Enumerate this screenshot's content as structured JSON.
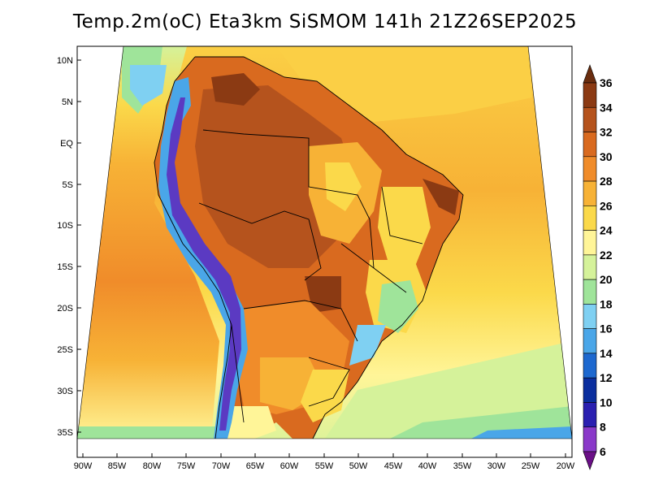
{
  "title": "Temp.2m(oC) Eta3km SiSMOM 141h 21Z26SEP2025",
  "axes": {
    "lat_labels": [
      "10N",
      "5N",
      "EQ",
      "5S",
      "10S",
      "15S",
      "20S",
      "25S",
      "30S",
      "35S"
    ],
    "lon_labels": [
      "90W",
      "85W",
      "80W",
      "75W",
      "70W",
      "65W",
      "60W",
      "55W",
      "50W",
      "45W",
      "40W",
      "35W",
      "30W",
      "25W",
      "20W"
    ]
  },
  "colorbar": {
    "labels": [
      "36",
      "34",
      "32",
      "30",
      "28",
      "26",
      "24",
      "22",
      "20",
      "18",
      "16",
      "14",
      "12",
      "10",
      "8",
      "6"
    ],
    "colors": [
      "#6a2d0f",
      "#8b3a13",
      "#b5531d",
      "#d96a1f",
      "#f08c2a",
      "#f7b236",
      "#fbd94a",
      "#fff598",
      "#d5f29a",
      "#9fe49a",
      "#7fd0f2",
      "#4aa6e8",
      "#1d68cf",
      "#0a2e9e",
      "#2a1fb0",
      "#8a39c9",
      "#6a0f86"
    ]
  },
  "map_colors": {
    "ocean_warm": "#f5a833",
    "ocean_mid": "#fbd94a",
    "ocean_cool": "#fff598",
    "land_hot": "#d96a1f",
    "land_very_hot": "#b5531d",
    "andes_cold": "#5b3ac2",
    "andes_cool": "#4aa6e8"
  }
}
